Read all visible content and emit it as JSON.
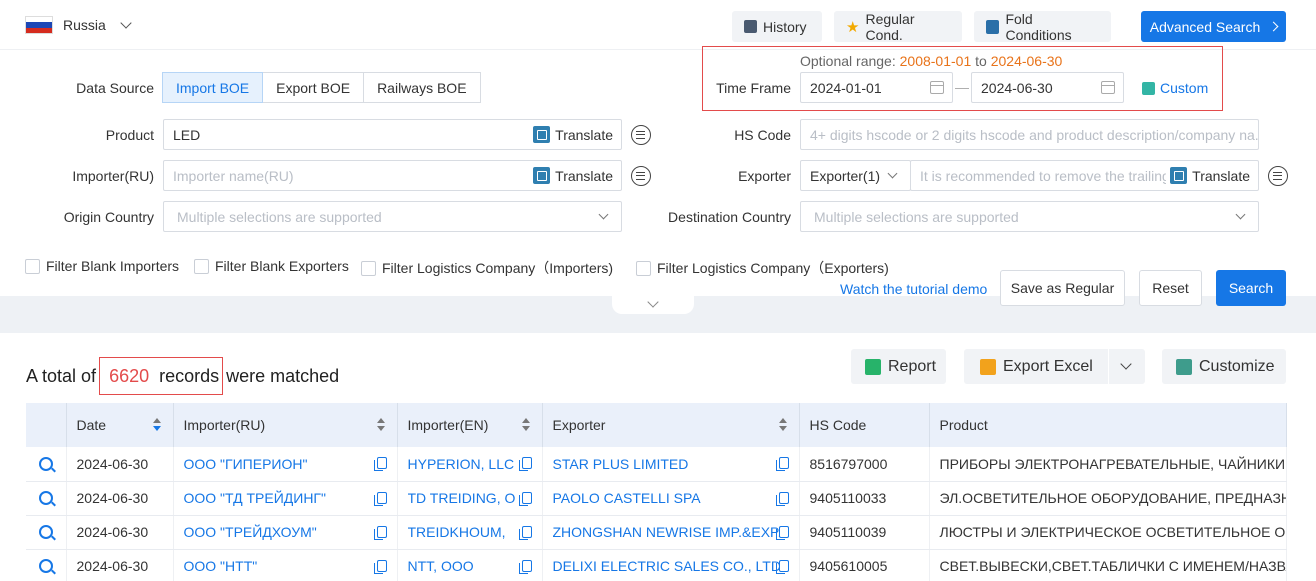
{
  "country": "Russia",
  "toolbar": {
    "history": "History",
    "regular": "Regular Cond.",
    "fold": "Fold Conditions",
    "advanced": "Advanced Search"
  },
  "data_source": {
    "label": "Data Source",
    "options": [
      "Import BOE",
      "Export BOE",
      "Railways BOE"
    ],
    "selected": "Import BOE"
  },
  "time": {
    "range_label": "Optional range:",
    "range_start": "2008-01-01",
    "range_to": "to",
    "range_end": "2024-06-30",
    "label": "Time Frame",
    "from": "2024-01-01",
    "dash": "—",
    "to": "2024-06-30",
    "custom": "Custom"
  },
  "fields": {
    "product_label": "Product",
    "product_value": "LED",
    "translate": "Translate",
    "hs_label": "HS Code",
    "hs_placeholder": "4+ digits hscode or 2 digits hscode and product description/company na...",
    "importer_label": "Importer(RU)",
    "importer_placeholder": "Importer name(RU)",
    "exporter_label": "Exporter",
    "exporter_select": "Exporter(1)",
    "exporter_placeholder": "It is recommended to remove the trailing",
    "origin_label": "Origin Country",
    "origin_placeholder": "Multiple selections are supported",
    "dest_label": "Destination Country",
    "dest_placeholder": "Multiple selections are supported"
  },
  "filters": [
    "Filter Blank Importers",
    "Filter Blank Exporters",
    "Filter Logistics Company（Importers)",
    "Filter Logistics Company（Exporters)"
  ],
  "actions": {
    "tutorial": "Watch the tutorial demo",
    "save": "Save as Regular",
    "reset": "Reset",
    "search": "Search"
  },
  "results": {
    "prefix": "A total of",
    "count": "6620",
    "records": "records",
    "suffix": "were matched",
    "report": "Report",
    "export": "Export Excel",
    "customize": "Customize"
  },
  "table": {
    "columns": [
      "Date",
      "Importer(RU)",
      "Importer(EN)",
      "Exporter",
      "HS Code",
      "Product"
    ],
    "rows": [
      {
        "date": "2024-06-30",
        "imp_ru": "ООО \"ГИПЕРИОН\"",
        "imp_en": "HYPERION, LLC",
        "exporter": "STAR PLUS LIMITED",
        "hs": "8516797000",
        "product": "ПРИБОРЫ ЭЛЕКТРОНАГРЕВАТЕЛЬНЫЕ, ЧАЙНИКИ:ЧАЙ"
      },
      {
        "date": "2024-06-30",
        "imp_ru": "ООО \"ТД ТРЕЙДИНГ\"",
        "imp_en": "TD TREIDING, O",
        "exporter": "PAOLO CASTELLI SPA",
        "hs": "9405110033",
        "product": "ЭЛ.ОСВЕТИТЕЛЬНОЕ ОБОРУДОВАНИЕ, ПРЕДНАЗНАЧЕН"
      },
      {
        "date": "2024-06-30",
        "imp_ru": "ООО \"ТРЕЙДХОУМ\"",
        "imp_en": "TREIDKHOUM,",
        "exporter": "ZHONGSHAN NEWRISE IMP.&EXP.",
        "hs": "9405110039",
        "product": "ЛЮСТРЫ И ЭЛЕКТРИЧЕСКОЕ ОСВЕТИТЕЛЬНОЕ ОБОРУ,"
      },
      {
        "date": "2024-06-30",
        "imp_ru": "ООО \"НТТ\"",
        "imp_en": "NTT, OOO",
        "exporter": "DELIXI ELECTRIC SALES CO., LTD.",
        "hs": "9405610005",
        "product": "СВЕТ.ВЫВЕСКИ,СВЕТ.ТАБЛИЧКИ С ИМЕНЕМ/НАЗВАНИ"
      }
    ]
  },
  "colors": {
    "primary": "#1677e6",
    "highlight_red": "#e34b4b",
    "range_orange": "#e8731a"
  }
}
